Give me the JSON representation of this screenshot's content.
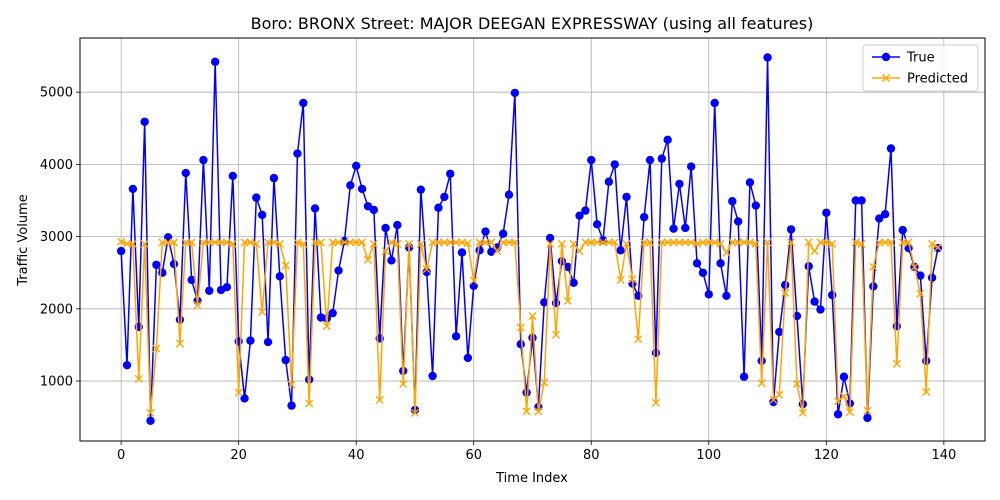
{
  "chart_data": {
    "type": "line",
    "title": "Boro: BRONX Street: MAJOR DEEGAN EXPRESSWAY (using all features)",
    "xlabel": "Time Index",
    "ylabel": "Traffic Volume",
    "xlim": [
      -7,
      147
    ],
    "ylim": [
      170,
      5750
    ],
    "xticks": [
      0,
      20,
      40,
      60,
      80,
      100,
      120,
      140
    ],
    "yticks": [
      1000,
      2000,
      3000,
      4000,
      5000
    ],
    "grid": true,
    "legend_position": "upper right",
    "colors": {
      "True": "#0000ff",
      "Predicted": "#ffa500"
    },
    "series": [
      {
        "name": "True",
        "marker": "circle",
        "values": [
          2800,
          1220,
          3660,
          1750,
          4590,
          450,
          2610,
          2500,
          2990,
          2620,
          1850,
          3880,
          2400,
          2110,
          4060,
          2250,
          5420,
          2260,
          2300,
          3840,
          1550,
          760,
          1560,
          3540,
          3300,
          1540,
          3810,
          2450,
          1290,
          660,
          4150,
          4850,
          1020,
          3390,
          1880,
          1870,
          1940,
          2530,
          2940,
          3710,
          3980,
          3660,
          3420,
          3370,
          1590,
          3120,
          2670,
          3160,
          1140,
          2850,
          600,
          3650,
          2510,
          1070,
          3400,
          3550,
          3870,
          1620,
          2780,
          1320,
          2320,
          2810,
          3070,
          2790,
          2850,
          3040,
          3580,
          4990,
          1510,
          840,
          1600,
          640,
          2090,
          2980,
          2080,
          2660,
          2580,
          2360,
          3290,
          3360,
          4060,
          3170,
          2950,
          3760,
          4000,
          2810,
          3550,
          2350,
          2180,
          3270,
          4060,
          1390,
          4080,
          4340,
          3110,
          3730,
          3120,
          3970,
          2630,
          2500,
          2200,
          4850,
          2630,
          2180,
          3490,
          3210,
          1060,
          3750,
          3430,
          1280,
          5480,
          710,
          1680,
          2330,
          3100,
          1900,
          680,
          2590,
          2100,
          1990,
          3330,
          2190,
          540,
          1060,
          690,
          3500,
          3500,
          490,
          2310,
          3250,
          3310,
          4220,
          1760,
          3090,
          2840,
          2580,
          2460,
          1280,
          2430,
          2840
        ]
      },
      {
        "name": "Predicted",
        "marker": "x",
        "values": [
          2930,
          2900,
          2900,
          1030,
          2900,
          560,
          1450,
          2920,
          2920,
          2920,
          1520,
          2920,
          2920,
          2050,
          2920,
          2920,
          2920,
          2920,
          2920,
          2900,
          840,
          2920,
          2920,
          2900,
          1960,
          2920,
          2920,
          2900,
          2600,
          950,
          2920,
          2900,
          690,
          2920,
          2920,
          1760,
          2920,
          2920,
          2920,
          2920,
          2920,
          2920,
          2680,
          2900,
          740,
          2800,
          2920,
          2900,
          960,
          2900,
          560,
          2900,
          2550,
          2920,
          2920,
          2920,
          2920,
          2920,
          2920,
          2910,
          2390,
          2920,
          2920,
          2920,
          2800,
          2920,
          2920,
          2920,
          1740,
          580,
          1900,
          580,
          980,
          2900,
          1640,
          2900,
          2110,
          2900,
          2800,
          2920,
          2920,
          2920,
          2920,
          2920,
          2920,
          2400,
          2900,
          2410,
          1580,
          2920,
          2920,
          700,
          2920,
          2920,
          2920,
          2920,
          2920,
          2920,
          2900,
          2920,
          2920,
          2920,
          2900,
          2780,
          2920,
          2920,
          2920,
          2920,
          2900,
          970,
          2920,
          740,
          810,
          2220,
          2920,
          960,
          560,
          2920,
          2800,
          2920,
          2920,
          2900,
          720,
          790,
          570,
          2920,
          2900,
          590,
          2580,
          2920,
          2920,
          2920,
          1240,
          2920,
          2920,
          2580,
          2210,
          850,
          2900,
          2850
        ]
      }
    ]
  }
}
